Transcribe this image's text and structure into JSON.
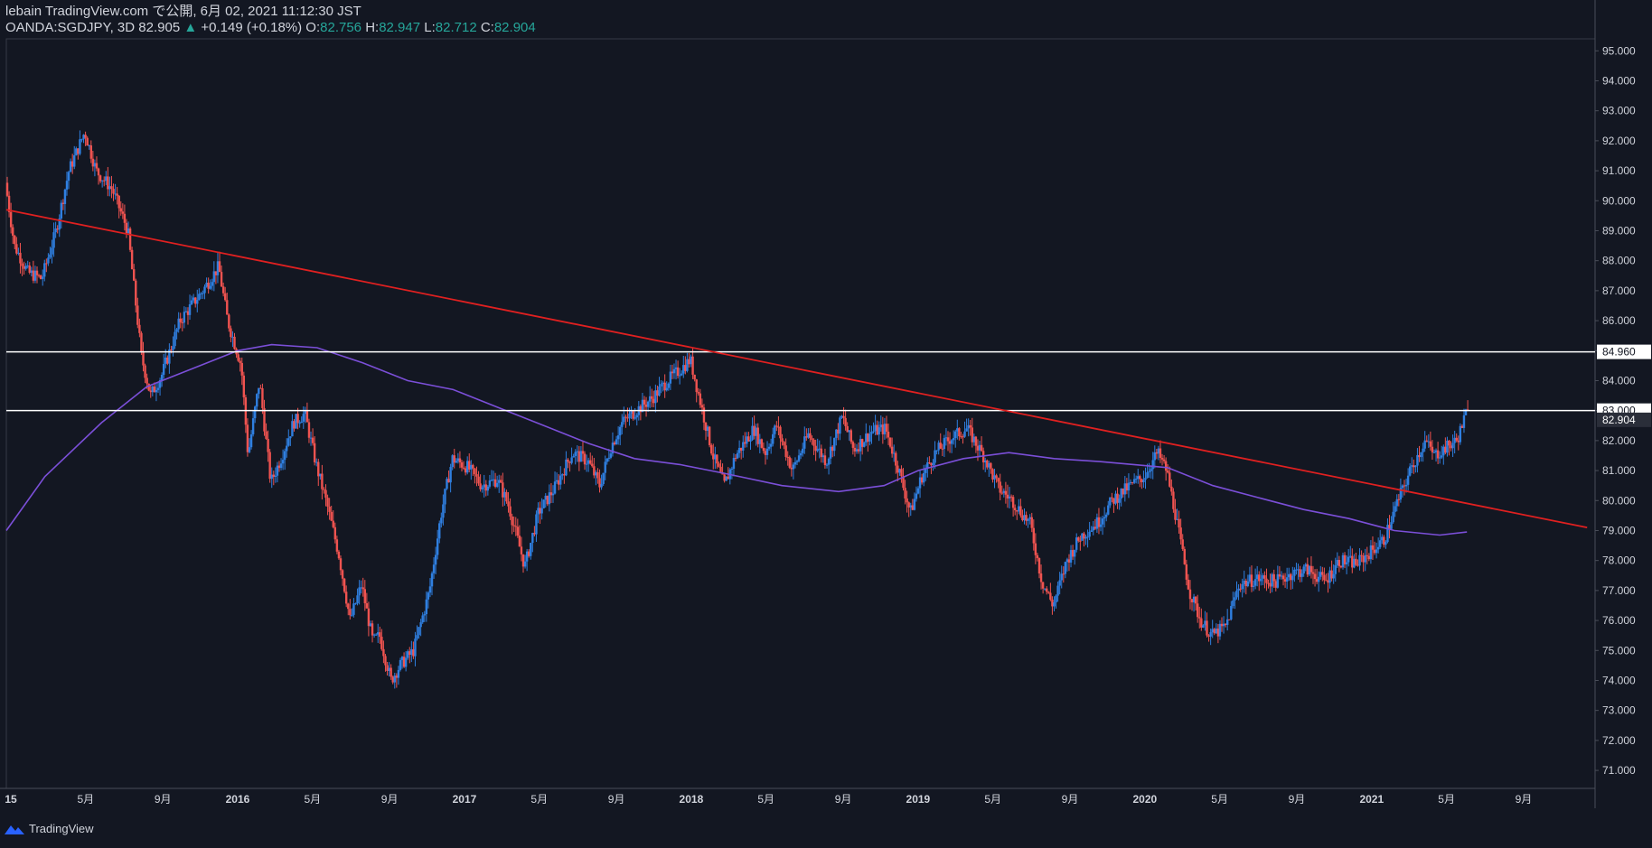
{
  "header": {
    "publish_line": "lebain TradingView.com で公開, 6月 02, 2021 11:12:30 JST",
    "symbol": "OANDA:SGDJPY, 3D",
    "last": "82.905",
    "arrow": "▲",
    "change": "+0.149 (+0.18%)",
    "o_label": "O:",
    "o_val": "82.756",
    "h_label": "H:",
    "h_val": "82.947",
    "l_label": "L:",
    "l_val": "82.712",
    "c_label": "C:",
    "c_val": "82.904"
  },
  "footer": {
    "brand": "TradingView",
    "logo_icon": "tradingview-logo-icon"
  },
  "colors": {
    "background": "#131722",
    "up": "#2f7fe0",
    "down": "#ef5350",
    "ma": "#7b4fd8",
    "trendline": "#e02020",
    "hline": "#ffffff"
  },
  "chart_data": {
    "type": "candlestick",
    "symbol": "OANDA:SGDJPY",
    "ylim": [
      70.4,
      95.4
    ],
    "y_ticks": [
      "95.000",
      "94.000",
      "93.000",
      "92.000",
      "91.000",
      "90.000",
      "89.000",
      "88.000",
      "87.000",
      "86.000",
      "85.000",
      "84.000",
      "83.000",
      "82.000",
      "81.000",
      "80.000",
      "79.000",
      "78.000",
      "77.000",
      "76.000",
      "75.000",
      "74.000",
      "73.000",
      "72.000",
      "71.000"
    ],
    "x_ticks": [
      {
        "label": "15",
        "t": 2015.0
      },
      {
        "label": "5月",
        "t": 2015.33
      },
      {
        "label": "9月",
        "t": 2015.67
      },
      {
        "label": "2016",
        "t": 2016.0
      },
      {
        "label": "5月",
        "t": 2016.33
      },
      {
        "label": "9月",
        "t": 2016.67
      },
      {
        "label": "2017",
        "t": 2017.0
      },
      {
        "label": "5月",
        "t": 2017.33
      },
      {
        "label": "9月",
        "t": 2017.67
      },
      {
        "label": "2018",
        "t": 2018.0
      },
      {
        "label": "5月",
        "t": 2018.33
      },
      {
        "label": "9月",
        "t": 2018.67
      },
      {
        "label": "2019",
        "t": 2019.0
      },
      {
        "label": "5月",
        "t": 2019.33
      },
      {
        "label": "9月",
        "t": 2019.67
      },
      {
        "label": "2020",
        "t": 2020.0
      },
      {
        "label": "5月",
        "t": 2020.33
      },
      {
        "label": "9月",
        "t": 2020.67
      },
      {
        "label": "2021",
        "t": 2021.0
      },
      {
        "label": "5月",
        "t": 2021.33
      },
      {
        "label": "9月",
        "t": 2021.67
      }
    ],
    "price_path": [
      [
        2014.98,
        90.6
      ],
      [
        2015.02,
        88.5
      ],
      [
        2015.08,
        87.6
      ],
      [
        2015.14,
        87.4
      ],
      [
        2015.2,
        88.9
      ],
      [
        2015.26,
        91.0
      ],
      [
        2015.33,
        92.3
      ],
      [
        2015.38,
        91.0
      ],
      [
        2015.45,
        90.4
      ],
      [
        2015.52,
        89.0
      ],
      [
        2015.58,
        84.8
      ],
      [
        2015.62,
        83.5
      ],
      [
        2015.67,
        84.2
      ],
      [
        2015.75,
        86.0
      ],
      [
        2015.85,
        87.0
      ],
      [
        2015.92,
        87.8
      ],
      [
        2015.96,
        86.0
      ],
      [
        2016.02,
        84.5
      ],
      [
        2016.05,
        81.5
      ],
      [
        2016.1,
        84.0
      ],
      [
        2016.15,
        80.6
      ],
      [
        2016.2,
        81.5
      ],
      [
        2016.25,
        82.6
      ],
      [
        2016.3,
        82.9
      ],
      [
        2016.35,
        81.2
      ],
      [
        2016.4,
        79.8
      ],
      [
        2016.45,
        78.2
      ],
      [
        2016.5,
        76.0
      ],
      [
        2016.55,
        77.2
      ],
      [
        2016.6,
        75.3
      ],
      [
        2016.63,
        75.5
      ],
      [
        2016.68,
        74.0
      ],
      [
        2016.72,
        74.5
      ],
      [
        2016.78,
        75.0
      ],
      [
        2016.85,
        77.0
      ],
      [
        2016.9,
        79.5
      ],
      [
        2016.95,
        81.4
      ],
      [
        2017.02,
        81.1
      ],
      [
        2017.08,
        80.5
      ],
      [
        2017.15,
        80.7
      ],
      [
        2017.2,
        79.8
      ],
      [
        2017.27,
        77.8
      ],
      [
        2017.33,
        79.6
      ],
      [
        2017.4,
        80.4
      ],
      [
        2017.48,
        81.6
      ],
      [
        2017.55,
        81.3
      ],
      [
        2017.6,
        80.5
      ],
      [
        2017.65,
        81.8
      ],
      [
        2017.7,
        82.6
      ],
      [
        2017.76,
        83.0
      ],
      [
        2017.83,
        83.4
      ],
      [
        2017.9,
        84.0
      ],
      [
        2017.96,
        84.4
      ],
      [
        2018.0,
        84.7
      ],
      [
        2018.05,
        83.1
      ],
      [
        2018.1,
        81.5
      ],
      [
        2018.15,
        80.5
      ],
      [
        2018.2,
        81.5
      ],
      [
        2018.28,
        82.4
      ],
      [
        2018.33,
        81.6
      ],
      [
        2018.38,
        82.5
      ],
      [
        2018.45,
        81.0
      ],
      [
        2018.52,
        82.2
      ],
      [
        2018.6,
        81.3
      ],
      [
        2018.67,
        82.8
      ],
      [
        2018.72,
        81.7
      ],
      [
        2018.8,
        82.3
      ],
      [
        2018.86,
        82.4
      ],
      [
        2018.92,
        81.0
      ],
      [
        2018.97,
        79.6
      ],
      [
        2019.02,
        80.8
      ],
      [
        2019.08,
        81.6
      ],
      [
        2019.15,
        82.1
      ],
      [
        2019.22,
        82.4
      ],
      [
        2019.3,
        81.4
      ],
      [
        2019.36,
        80.4
      ],
      [
        2019.42,
        80.0
      ],
      [
        2019.5,
        79.2
      ],
      [
        2019.55,
        77.3
      ],
      [
        2019.6,
        76.5
      ],
      [
        2019.66,
        78.0
      ],
      [
        2019.72,
        78.8
      ],
      [
        2019.8,
        79.3
      ],
      [
        2019.86,
        80.0
      ],
      [
        2019.94,
        80.5
      ],
      [
        2020.0,
        80.8
      ],
      [
        2020.06,
        81.6
      ],
      [
        2020.1,
        81.0
      ],
      [
        2020.14,
        79.5
      ],
      [
        2020.2,
        77.0
      ],
      [
        2020.25,
        76.0
      ],
      [
        2020.3,
        75.5
      ],
      [
        2020.36,
        75.8
      ],
      [
        2020.42,
        77.2
      ],
      [
        2020.5,
        77.4
      ],
      [
        2020.58,
        77.3
      ],
      [
        2020.66,
        77.6
      ],
      [
        2020.72,
        77.7
      ],
      [
        2020.8,
        77.3
      ],
      [
        2020.86,
        78.0
      ],
      [
        2020.94,
        77.9
      ],
      [
        2021.0,
        78.3
      ],
      [
        2021.06,
        78.7
      ],
      [
        2021.12,
        80.0
      ],
      [
        2021.18,
        81.1
      ],
      [
        2021.24,
        82.0
      ],
      [
        2021.28,
        81.5
      ],
      [
        2021.34,
        81.8
      ],
      [
        2021.38,
        82.0
      ],
      [
        2021.42,
        82.9
      ]
    ],
    "moving_average": [
      [
        2014.98,
        79.0
      ],
      [
        2015.15,
        80.8
      ],
      [
        2015.4,
        82.6
      ],
      [
        2015.6,
        83.8
      ],
      [
        2015.8,
        84.4
      ],
      [
        2016.0,
        85.0
      ],
      [
        2016.15,
        85.2
      ],
      [
        2016.35,
        85.1
      ],
      [
        2016.55,
        84.6
      ],
      [
        2016.75,
        84.0
      ],
      [
        2016.95,
        83.7
      ],
      [
        2017.15,
        83.1
      ],
      [
        2017.35,
        82.5
      ],
      [
        2017.55,
        81.9
      ],
      [
        2017.75,
        81.4
      ],
      [
        2017.95,
        81.2
      ],
      [
        2018.15,
        80.9
      ],
      [
        2018.4,
        80.5
      ],
      [
        2018.65,
        80.3
      ],
      [
        2018.85,
        80.5
      ],
      [
        2019.0,
        81.0
      ],
      [
        2019.2,
        81.4
      ],
      [
        2019.4,
        81.6
      ],
      [
        2019.6,
        81.4
      ],
      [
        2019.8,
        81.3
      ],
      [
        2019.95,
        81.2
      ],
      [
        2020.1,
        81.1
      ],
      [
        2020.3,
        80.5
      ],
      [
        2020.5,
        80.1
      ],
      [
        2020.7,
        79.7
      ],
      [
        2020.9,
        79.4
      ],
      [
        2021.1,
        79.0
      ],
      [
        2021.3,
        78.85
      ],
      [
        2021.42,
        78.95
      ]
    ],
    "trendline": {
      "start": [
        2014.98,
        89.7
      ],
      "end": [
        2021.95,
        79.1
      ]
    },
    "horizontal_lines": [
      {
        "value": 84.96,
        "label": "84.960"
      },
      {
        "value": 83.0,
        "label": "83.000"
      }
    ],
    "last_price_label": "82.904",
    "last_price": 82.904
  }
}
